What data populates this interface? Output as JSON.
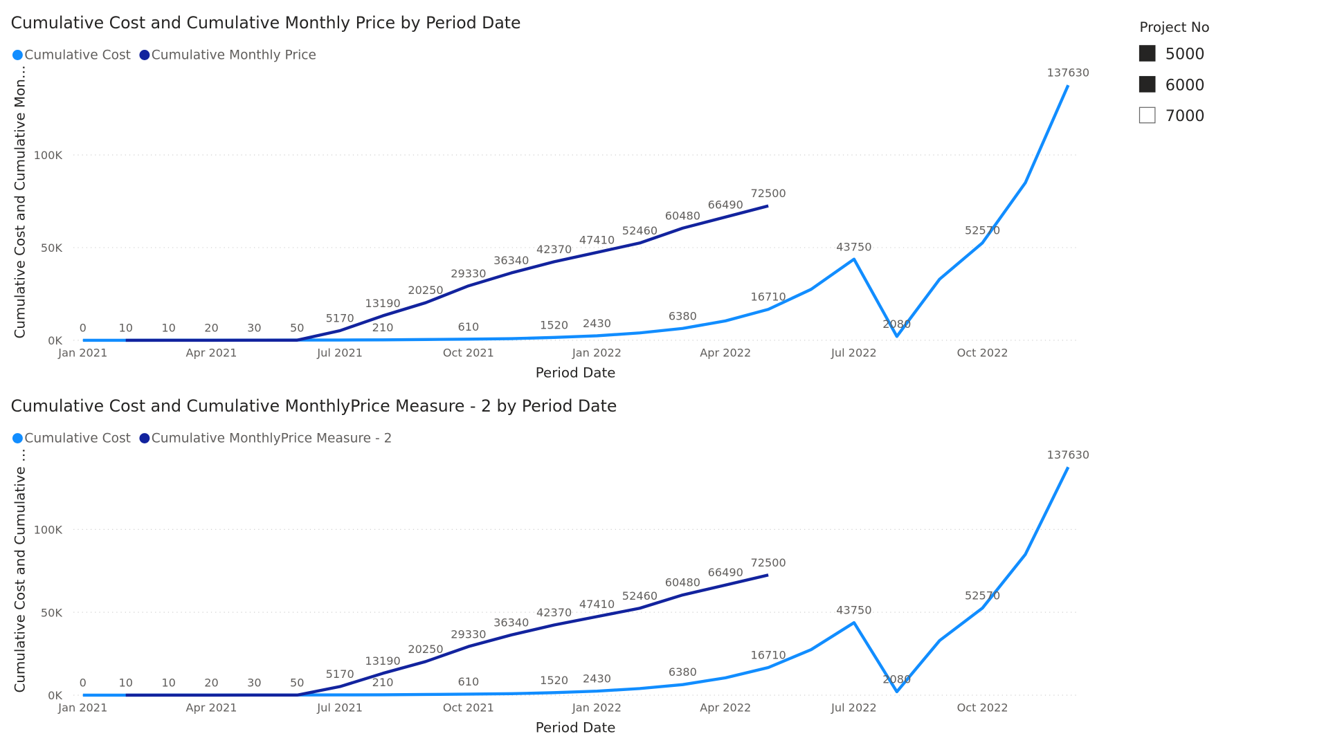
{
  "chart_data": [
    {
      "type": "line",
      "title": "Cumulative Cost and Cumulative Monthly Price by Period Date",
      "x_label": "Period Date",
      "y_label": "Cumulative Cost and Cumulative Mon…",
      "x": [
        "2021-01",
        "2021-02",
        "2021-03",
        "2021-04",
        "2021-05",
        "2021-06",
        "2021-07",
        "2021-08",
        "2021-09",
        "2021-10",
        "2021-11",
        "2021-12",
        "2022-01",
        "2022-02",
        "2022-03",
        "2022-04",
        "2022-05",
        "2022-06",
        "2022-07",
        "2022-08",
        "2022-09",
        "2022-10",
        "2022-11",
        "2022-12"
      ],
      "xticks": [
        {
          "value": "2021-01",
          "label": "Jan 2021"
        },
        {
          "value": "2021-04",
          "label": "Apr 2021"
        },
        {
          "value": "2021-07",
          "label": "Jul 2021"
        },
        {
          "value": "2021-10",
          "label": "Oct 2021"
        },
        {
          "value": "2022-01",
          "label": "Jan 2022"
        },
        {
          "value": "2022-04",
          "label": "Apr 2022"
        },
        {
          "value": "2022-07",
          "label": "Jul 2022"
        },
        {
          "value": "2022-10",
          "label": "Oct 2022"
        }
      ],
      "ylim": [
        0,
        140000
      ],
      "yticks": [
        {
          "value": 0,
          "label": "0K"
        },
        {
          "value": 50000,
          "label": "50K"
        },
        {
          "value": 100000,
          "label": "100K"
        }
      ],
      "grid": true,
      "series": [
        {
          "name": "Cumulative Cost",
          "color": "#118DFF",
          "values": [
            0,
            20,
            40,
            60,
            80,
            120,
            160,
            210,
            400,
            610,
            900,
            1520,
            2430,
            4000,
            6380,
            10500,
            16710,
            27500,
            43750,
            2080,
            33000,
            52570,
            85000,
            137630
          ],
          "value_labels": [
            "0",
            null,
            null,
            null,
            null,
            null,
            null,
            "210",
            null,
            "610",
            null,
            "1520",
            "2430",
            null,
            "6380",
            null,
            "16710",
            null,
            "43750",
            "2080",
            null,
            "52570",
            null,
            "137630"
          ]
        },
        {
          "name": "Cumulative Monthly Price",
          "color": "#12239E",
          "values": [
            null,
            10,
            10,
            20,
            30,
            50,
            5170,
            13190,
            20250,
            29330,
            36340,
            42370,
            47410,
            52460,
            60480,
            66490,
            72500,
            null,
            null,
            null,
            null,
            null,
            null,
            null
          ],
          "value_labels": [
            null,
            "10",
            "10",
            "20",
            "30",
            "50",
            "5170",
            "13190",
            "20250",
            "29330",
            "36340",
            "42370",
            "47410",
            "52460",
            "60480",
            "66490",
            "72500",
            null,
            null,
            null,
            null,
            null,
            null,
            null
          ]
        }
      ]
    },
    {
      "type": "line",
      "title": "Cumulative Cost and Cumulative MonthlyPrice Measure - 2 by Period Date",
      "x_label": "Period Date",
      "y_label": "Cumulative Cost and Cumulative …",
      "x": [
        "2021-01",
        "2021-02",
        "2021-03",
        "2021-04",
        "2021-05",
        "2021-06",
        "2021-07",
        "2021-08",
        "2021-09",
        "2021-10",
        "2021-11",
        "2021-12",
        "2022-01",
        "2022-02",
        "2022-03",
        "2022-04",
        "2022-05",
        "2022-06",
        "2022-07",
        "2022-08",
        "2022-09",
        "2022-10",
        "2022-11",
        "2022-12"
      ],
      "xticks": [
        {
          "value": "2021-01",
          "label": "Jan 2021"
        },
        {
          "value": "2021-04",
          "label": "Apr 2021"
        },
        {
          "value": "2021-07",
          "label": "Jul 2021"
        },
        {
          "value": "2021-10",
          "label": "Oct 2021"
        },
        {
          "value": "2022-01",
          "label": "Jan 2022"
        },
        {
          "value": "2022-04",
          "label": "Apr 2022"
        },
        {
          "value": "2022-07",
          "label": "Jul 2022"
        },
        {
          "value": "2022-10",
          "label": "Oct 2022"
        }
      ],
      "ylim": [
        0,
        140000
      ],
      "yticks": [
        {
          "value": 0,
          "label": "0K"
        },
        {
          "value": 50000,
          "label": "50K"
        },
        {
          "value": 100000,
          "label": "100K"
        }
      ],
      "grid": true,
      "series": [
        {
          "name": "Cumulative Cost",
          "color": "#118DFF",
          "values": [
            0,
            20,
            40,
            60,
            80,
            120,
            160,
            210,
            400,
            610,
            900,
            1520,
            2430,
            4000,
            6380,
            10500,
            16710,
            27500,
            43750,
            2080,
            33000,
            52570,
            85000,
            137630
          ],
          "value_labels": [
            "0",
            null,
            null,
            null,
            null,
            null,
            null,
            "210",
            null,
            "610",
            null,
            "1520",
            "2430",
            null,
            "6380",
            null,
            "16710",
            null,
            "43750",
            "2080",
            null,
            "52570",
            null,
            "137630"
          ]
        },
        {
          "name": "Cumulative MonthlyPrice Measure - 2",
          "color": "#12239E",
          "values": [
            null,
            10,
            10,
            20,
            30,
            50,
            5170,
            13190,
            20250,
            29330,
            36340,
            42370,
            47410,
            52460,
            60480,
            66490,
            72500,
            null,
            null,
            null,
            null,
            null,
            null,
            null
          ],
          "value_labels": [
            null,
            "10",
            "10",
            "20",
            "30",
            "50",
            "5170",
            "13190",
            "20250",
            "29330",
            "36340",
            "42370",
            "47410",
            "52460",
            "60480",
            "66490",
            "72500",
            null,
            null,
            null,
            null,
            null,
            null,
            null
          ]
        }
      ]
    }
  ],
  "slicer": {
    "title": "Project No",
    "items": [
      {
        "label": "5000",
        "selected": true
      },
      {
        "label": "6000",
        "selected": true
      },
      {
        "label": "7000",
        "selected": false
      }
    ]
  }
}
